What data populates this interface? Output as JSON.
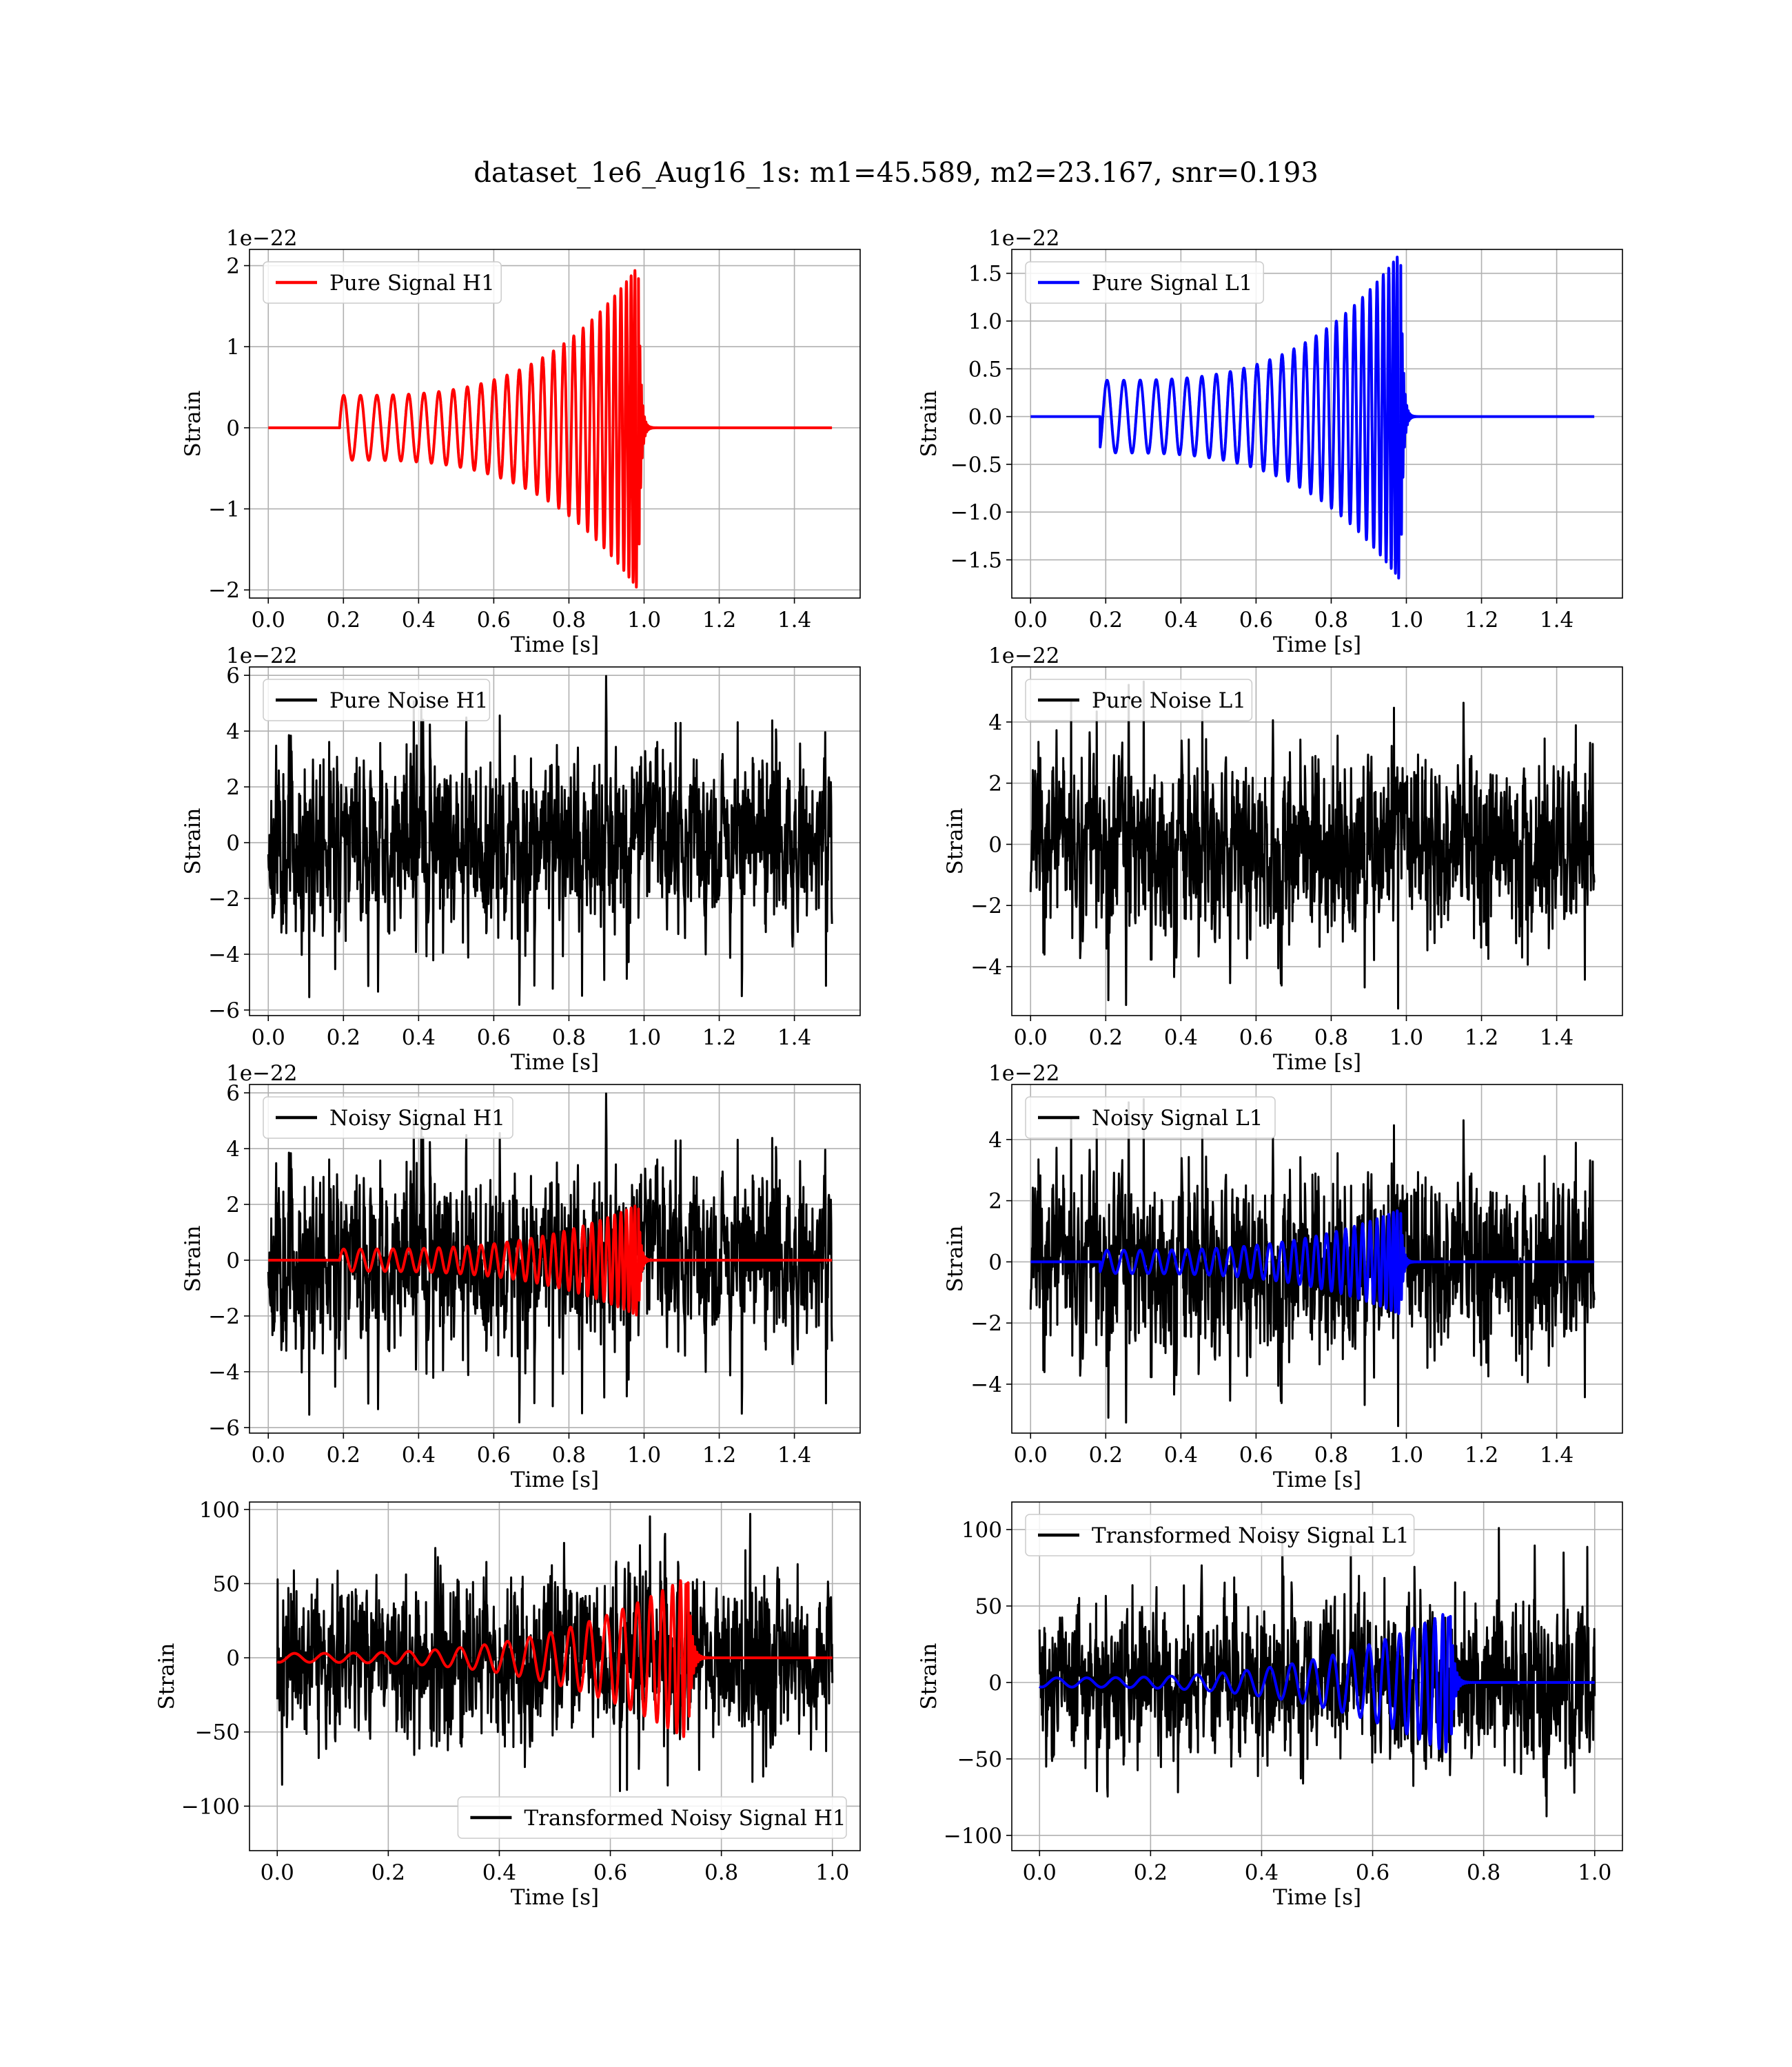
{
  "figure_title": "dataset_1e6_Aug16_1s: m1=45.589, m2=23.167, snr=0.193",
  "colors": {
    "h1_signal": "#ff0000",
    "l1_signal": "#0000ff",
    "noise": "#000000",
    "grid": "#b0b0b0"
  },
  "chart_data": [
    {
      "type": "line",
      "panel": "Pure Signal H1",
      "title": "",
      "xlabel": "Time [s]",
      "ylabel": "Strain",
      "offset_text": "1e−22",
      "xlim": [
        -0.05,
        1.575
      ],
      "ylim": [
        -2.1,
        2.2
      ],
      "xticks": [
        "0.0",
        "0.2",
        "0.4",
        "0.6",
        "0.8",
        "1.0",
        "1.2",
        "1.4"
      ],
      "xtick_values": [
        0,
        0.2,
        0.4,
        0.6,
        0.8,
        1.0,
        1.2,
        1.4
      ],
      "yticks": [
        "−2",
        "−1",
        "0",
        "1",
        "2"
      ],
      "ytick_values": [
        -2,
        -1,
        0,
        1,
        2
      ],
      "grid": true,
      "legend_position": "upper-left",
      "series": [
        {
          "name": "Pure Signal H1",
          "color": "#ff0000",
          "kind": "chirp",
          "t_start": 0.19,
          "t_merge": 0.985,
          "t_end": 1.5,
          "amp_start": 0.4,
          "amp_peak": 2.0,
          "f_start": 22
        }
      ]
    },
    {
      "type": "line",
      "panel": "Pure Signal L1",
      "title": "",
      "xlabel": "Time [s]",
      "ylabel": "Strain",
      "offset_text": "1e−22",
      "xlim": [
        -0.05,
        1.575
      ],
      "ylim": [
        -1.9,
        1.75
      ],
      "xticks": [
        "0.0",
        "0.2",
        "0.4",
        "0.6",
        "0.8",
        "1.0",
        "1.2",
        "1.4"
      ],
      "xtick_values": [
        0,
        0.2,
        0.4,
        0.6,
        0.8,
        1.0,
        1.2,
        1.4
      ],
      "yticks": [
        "−1.5",
        "−1.0",
        "−0.5",
        "0.0",
        "0.5",
        "1.0",
        "1.5"
      ],
      "ytick_values": [
        -1.5,
        -1.0,
        -0.5,
        0,
        0.5,
        1.0,
        1.5
      ],
      "grid": true,
      "legend_position": "upper-left",
      "series": [
        {
          "name": "Pure Signal L1",
          "color": "#0000ff",
          "kind": "chirp",
          "t_start": 0.185,
          "t_merge": 0.985,
          "t_end": 1.5,
          "amp_start": 0.38,
          "amp_peak": 1.72,
          "f_start": 22
        }
      ]
    },
    {
      "type": "line",
      "panel": "Pure Noise H1",
      "title": "",
      "xlabel": "Time [s]",
      "ylabel": "Strain",
      "offset_text": "1e−22",
      "xlim": [
        -0.05,
        1.575
      ],
      "ylim": [
        -6.2,
        6.3
      ],
      "xticks": [
        "0.0",
        "0.2",
        "0.4",
        "0.6",
        "0.8",
        "1.0",
        "1.2",
        "1.4"
      ],
      "xtick_values": [
        0,
        0.2,
        0.4,
        0.6,
        0.8,
        1.0,
        1.2,
        1.4
      ],
      "yticks": [
        "−6",
        "−4",
        "−2",
        "0",
        "2",
        "4",
        "6"
      ],
      "ytick_values": [
        -6,
        -4,
        -2,
        0,
        2,
        4,
        6
      ],
      "grid": true,
      "legend_position": "upper-left",
      "series": [
        {
          "name": "Pure Noise H1",
          "color": "#000000",
          "kind": "noise",
          "t_start": 0,
          "t_end": 1.5,
          "sigma": 1.6,
          "peak": 6.0,
          "seed": 11
        }
      ]
    },
    {
      "type": "line",
      "panel": "Pure Noise L1",
      "title": "",
      "xlabel": "Time [s]",
      "ylabel": "Strain",
      "offset_text": "1e−22",
      "xlim": [
        -0.05,
        1.575
      ],
      "ylim": [
        -5.6,
        5.8
      ],
      "xticks": [
        "0.0",
        "0.2",
        "0.4",
        "0.6",
        "0.8",
        "1.0",
        "1.2",
        "1.4"
      ],
      "xtick_values": [
        0,
        0.2,
        0.4,
        0.6,
        0.8,
        1.0,
        1.2,
        1.4
      ],
      "yticks": [
        "−4",
        "−2",
        "0",
        "2",
        "4"
      ],
      "ytick_values": [
        -4,
        -2,
        0,
        2,
        4
      ],
      "grid": true,
      "legend_position": "upper-left",
      "series": [
        {
          "name": "Pure Noise L1",
          "color": "#000000",
          "kind": "noise",
          "t_start": 0,
          "t_end": 1.5,
          "sigma": 1.5,
          "peak": 5.4,
          "seed": 23
        }
      ]
    },
    {
      "type": "line",
      "panel": "Noisy Signal H1",
      "title": "",
      "xlabel": "Time [s]",
      "ylabel": "Strain",
      "offset_text": "1e−22",
      "xlim": [
        -0.05,
        1.575
      ],
      "ylim": [
        -6.2,
        6.3
      ],
      "xticks": [
        "0.0",
        "0.2",
        "0.4",
        "0.6",
        "0.8",
        "1.0",
        "1.2",
        "1.4"
      ],
      "xtick_values": [
        0,
        0.2,
        0.4,
        0.6,
        0.8,
        1.0,
        1.2,
        1.4
      ],
      "yticks": [
        "−6",
        "−4",
        "−2",
        "0",
        "2",
        "4",
        "6"
      ],
      "ytick_values": [
        -6,
        -4,
        -2,
        0,
        2,
        4,
        6
      ],
      "grid": true,
      "legend_position": "upper-left",
      "series": [
        {
          "name": "Noisy Signal H1",
          "color": "#000000",
          "kind": "noise",
          "t_start": 0,
          "t_end": 1.5,
          "sigma": 1.6,
          "peak": 6.0,
          "seed": 11
        },
        {
          "color": "#ff0000",
          "kind": "chirp",
          "t_start": 0.19,
          "t_merge": 0.985,
          "t_end": 1.5,
          "amp_start": 0.4,
          "amp_peak": 2.0,
          "f_start": 22
        }
      ]
    },
    {
      "type": "line",
      "panel": "Noisy Signal L1",
      "title": "",
      "xlabel": "Time [s]",
      "ylabel": "Strain",
      "offset_text": "1e−22",
      "xlim": [
        -0.05,
        1.575
      ],
      "ylim": [
        -5.6,
        5.8
      ],
      "xticks": [
        "0.0",
        "0.2",
        "0.4",
        "0.6",
        "0.8",
        "1.0",
        "1.2",
        "1.4"
      ],
      "xtick_values": [
        0,
        0.2,
        0.4,
        0.6,
        0.8,
        1.0,
        1.2,
        1.4
      ],
      "yticks": [
        "−4",
        "−2",
        "0",
        "2",
        "4"
      ],
      "ytick_values": [
        -4,
        -2,
        0,
        2,
        4
      ],
      "grid": true,
      "legend_position": "upper-left",
      "series": [
        {
          "name": "Noisy Signal L1",
          "color": "#000000",
          "kind": "noise",
          "t_start": 0,
          "t_end": 1.5,
          "sigma": 1.5,
          "peak": 5.4,
          "seed": 23
        },
        {
          "color": "#0000ff",
          "kind": "chirp",
          "t_start": 0.185,
          "t_merge": 0.985,
          "t_end": 1.5,
          "amp_start": 0.38,
          "amp_peak": 1.72,
          "f_start": 22
        }
      ]
    },
    {
      "type": "line",
      "panel": "Transformed Noisy Signal H1",
      "title": "",
      "xlabel": "Time [s]",
      "ylabel": "Strain",
      "offset_text": "",
      "xlim": [
        -0.05,
        1.05
      ],
      "ylim": [
        -130,
        105
      ],
      "xticks": [
        "0.0",
        "0.2",
        "0.4",
        "0.6",
        "0.8",
        "1.0"
      ],
      "xtick_values": [
        0,
        0.2,
        0.4,
        0.6,
        0.8,
        1.0
      ],
      "yticks": [
        "−100",
        "−50",
        "0",
        "50",
        "100"
      ],
      "ytick_values": [
        -100,
        -50,
        0,
        50,
        100
      ],
      "grid": true,
      "legend_position": "lower-right",
      "series": [
        {
          "name": "Transformed Noisy Signal H1",
          "color": "#000000",
          "kind": "noise",
          "t_start": 0,
          "t_end": 1.0,
          "sigma": 27,
          "peak": 97,
          "seed": 37
        },
        {
          "color": "#ff0000",
          "kind": "chirp",
          "t_start": 0.0,
          "t_merge": 0.74,
          "t_end": 1.0,
          "amp_start": 3,
          "amp_peak": 55,
          "f_start": 18
        }
      ]
    },
    {
      "type": "line",
      "panel": "Transformed Noisy Signal L1",
      "title": "",
      "xlabel": "Time [s]",
      "ylabel": "Strain",
      "offset_text": "",
      "xlim": [
        -0.05,
        1.05
      ],
      "ylim": [
        -110,
        118
      ],
      "xticks": [
        "0.0",
        "0.2",
        "0.4",
        "0.6",
        "0.8",
        "1.0"
      ],
      "xtick_values": [
        0,
        0.2,
        0.4,
        0.6,
        0.8,
        1.0
      ],
      "yticks": [
        "−100",
        "−50",
        "0",
        "50",
        "100"
      ],
      "ytick_values": [
        -100,
        -50,
        0,
        50,
        100
      ],
      "grid": true,
      "legend_position": "upper-left",
      "series": [
        {
          "name": "Transformed Noisy Signal L1",
          "color": "#000000",
          "kind": "noise",
          "t_start": 0,
          "t_end": 1.0,
          "sigma": 26,
          "peak": 102,
          "seed": 53
        },
        {
          "color": "#0000ff",
          "kind": "chirp",
          "t_start": 0.0,
          "t_merge": 0.74,
          "t_end": 1.0,
          "amp_start": 3,
          "amp_peak": 47,
          "f_start": 18
        }
      ]
    }
  ]
}
